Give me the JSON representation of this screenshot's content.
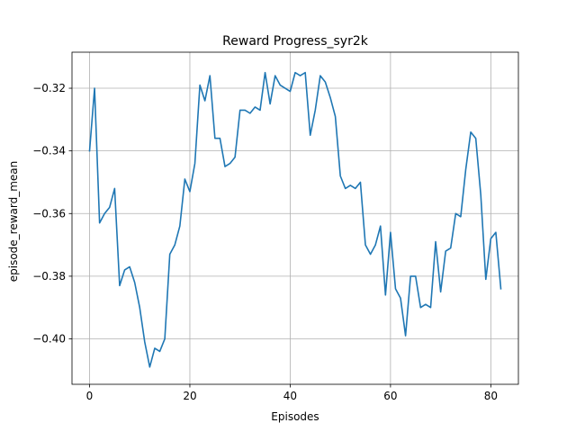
{
  "chart_data": {
    "type": "line",
    "title": "Reward Progress_syr2k",
    "xlabel": "Episodes",
    "ylabel": "episode_reward_mean",
    "xlim": [
      -3.5,
      85.5
    ],
    "ylim": [
      -0.4145,
      -0.3085
    ],
    "xticks": [
      0,
      20,
      40,
      60,
      80
    ],
    "yticks": [
      -0.4,
      -0.38,
      -0.36,
      -0.34,
      -0.32
    ],
    "xtick_labels": [
      "0",
      "20",
      "40",
      "60",
      "80"
    ],
    "ytick_labels": [
      "−0.40",
      "−0.38",
      "−0.36",
      "−0.34",
      "−0.32"
    ],
    "grid": true,
    "line_color": "#1f77b4",
    "series": [
      {
        "x": [
          0,
          1,
          2,
          3,
          4,
          5,
          6,
          7,
          8,
          9,
          10,
          11,
          12,
          13,
          14,
          15,
          16,
          17,
          18,
          19,
          20,
          21,
          22,
          23,
          24,
          25,
          26,
          27,
          28,
          29,
          30,
          31,
          32,
          33,
          34,
          35,
          36,
          37,
          38,
          39,
          40,
          41,
          42,
          43,
          44,
          45,
          46,
          47,
          48,
          49,
          50,
          51,
          52,
          53,
          54,
          55,
          56,
          57,
          58,
          59,
          60,
          61,
          62,
          63,
          64,
          65,
          66,
          67,
          68,
          69,
          70,
          71,
          72,
          73,
          74,
          75,
          76,
          77,
          78,
          79,
          80,
          81,
          82
        ],
        "values": [
          -0.34,
          -0.32,
          -0.363,
          -0.36,
          -0.358,
          -0.352,
          -0.383,
          -0.378,
          -0.377,
          -0.382,
          -0.39,
          -0.401,
          -0.409,
          -0.403,
          -0.404,
          -0.4,
          -0.373,
          -0.37,
          -0.364,
          -0.349,
          -0.353,
          -0.344,
          -0.319,
          -0.324,
          -0.316,
          -0.336,
          -0.336,
          -0.345,
          -0.344,
          -0.342,
          -0.327,
          -0.327,
          -0.328,
          -0.326,
          -0.327,
          -0.315,
          -0.325,
          -0.316,
          -0.319,
          -0.32,
          -0.321,
          -0.315,
          -0.316,
          -0.315,
          -0.335,
          -0.327,
          -0.316,
          -0.318,
          -0.323,
          -0.329,
          -0.348,
          -0.352,
          -0.351,
          -0.352,
          -0.35,
          -0.37,
          -0.373,
          -0.37,
          -0.364,
          -0.386,
          -0.366,
          -0.384,
          -0.387,
          -0.399,
          -0.38,
          -0.38,
          -0.39,
          -0.389,
          -0.39,
          -0.369,
          -0.385,
          -0.372,
          -0.371,
          -0.36,
          -0.361,
          -0.346,
          -0.334,
          -0.336,
          -0.354,
          -0.381,
          -0.368,
          -0.366,
          -0.384
        ]
      }
    ]
  }
}
